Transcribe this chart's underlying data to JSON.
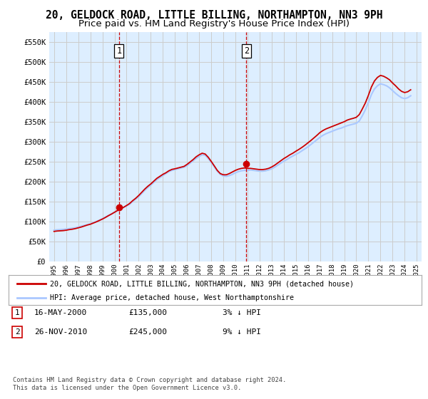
{
  "title": "20, GELDOCK ROAD, LITTLE BILLING, NORTHAMPTON, NN3 9PH",
  "subtitle": "Price paid vs. HM Land Registry's House Price Index (HPI)",
  "title_fontsize": 10.5,
  "subtitle_fontsize": 9.5,
  "ylim": [
    0,
    575000
  ],
  "yticks": [
    0,
    50000,
    100000,
    150000,
    200000,
    250000,
    300000,
    350000,
    400000,
    450000,
    500000,
    550000
  ],
  "ytick_labels": [
    "£0",
    "£50K",
    "£100K",
    "£150K",
    "£200K",
    "£250K",
    "£300K",
    "£350K",
    "£400K",
    "£450K",
    "£500K",
    "£550K"
  ],
  "xtick_years": [
    "1995",
    "1996",
    "1997",
    "1998",
    "1999",
    "2000",
    "2001",
    "2002",
    "2003",
    "2004",
    "2005",
    "2006",
    "2007",
    "2008",
    "2009",
    "2010",
    "2011",
    "2012",
    "2013",
    "2014",
    "2015",
    "2016",
    "2017",
    "2018",
    "2019",
    "2020",
    "2021",
    "2022",
    "2023",
    "2024",
    "2025"
  ],
  "hpi_color": "#aac8ff",
  "price_color": "#cc0000",
  "grid_color": "#cccccc",
  "bg_color": "#ddeeff",
  "sale1_year": 2000.38,
  "sale1_price": 135000,
  "sale1_label": "1",
  "sale2_year": 2010.9,
  "sale2_price": 245000,
  "sale2_label": "2",
  "legend_line1": "20, GELDOCK ROAD, LITTLE BILLING, NORTHAMPTON, NN3 9PH (detached house)",
  "legend_line2": "HPI: Average price, detached house, West Northamptonshire",
  "note1_label": "1",
  "note1_date": "16-MAY-2000",
  "note1_price": "£135,000",
  "note1_hpi": "3% ↓ HPI",
  "note2_label": "2",
  "note2_date": "26-NOV-2010",
  "note2_price": "£245,000",
  "note2_hpi": "9% ↓ HPI",
  "footnote": "Contains HM Land Registry data © Crown copyright and database right 2024.\nThis data is licensed under the Open Government Licence v3.0.",
  "hpi_data_x": [
    1995,
    1995.25,
    1995.5,
    1995.75,
    1996,
    1996.25,
    1996.5,
    1996.75,
    1997,
    1997.25,
    1997.5,
    1997.75,
    1998,
    1998.25,
    1998.5,
    1998.75,
    1999,
    1999.25,
    1999.5,
    1999.75,
    2000,
    2000.25,
    2000.5,
    2000.75,
    2001,
    2001.25,
    2001.5,
    2001.75,
    2002,
    2002.25,
    2002.5,
    2002.75,
    2003,
    2003.25,
    2003.5,
    2003.75,
    2004,
    2004.25,
    2004.5,
    2004.75,
    2005,
    2005.25,
    2005.5,
    2005.75,
    2006,
    2006.25,
    2006.5,
    2006.75,
    2007,
    2007.25,
    2007.5,
    2007.75,
    2008,
    2008.25,
    2008.5,
    2008.75,
    2009,
    2009.25,
    2009.5,
    2009.75,
    2010,
    2010.25,
    2010.5,
    2010.75,
    2011,
    2011.25,
    2011.5,
    2011.75,
    2012,
    2012.25,
    2012.5,
    2012.75,
    2013,
    2013.25,
    2013.5,
    2013.75,
    2014,
    2014.25,
    2014.5,
    2014.75,
    2015,
    2015.25,
    2015.5,
    2015.75,
    2016,
    2016.25,
    2016.5,
    2016.75,
    2017,
    2017.25,
    2017.5,
    2017.75,
    2018,
    2018.25,
    2018.5,
    2018.75,
    2019,
    2019.25,
    2019.5,
    2019.75,
    2020,
    2020.25,
    2020.5,
    2020.75,
    2021,
    2021.25,
    2021.5,
    2021.75,
    2022,
    2022.25,
    2022.5,
    2022.75,
    2023,
    2023.25,
    2023.5,
    2023.75,
    2024,
    2024.25,
    2024.5
  ],
  "hpi_data_y": [
    78000,
    79000,
    79500,
    80000,
    81000,
    82000,
    83000,
    84000,
    86000,
    88000,
    90000,
    92000,
    94000,
    97000,
    100000,
    103000,
    107000,
    111000,
    115000,
    119000,
    123000,
    127000,
    131000,
    135000,
    139000,
    143000,
    150000,
    156000,
    162000,
    170000,
    178000,
    185000,
    191000,
    198000,
    205000,
    210000,
    215000,
    220000,
    225000,
    228000,
    230000,
    232000,
    234000,
    236000,
    240000,
    246000,
    252000,
    258000,
    263000,
    267000,
    266000,
    258000,
    248000,
    237000,
    226000,
    218000,
    214000,
    213000,
    215000,
    218000,
    222000,
    225000,
    227000,
    228000,
    228000,
    229000,
    228000,
    227000,
    226000,
    226000,
    227000,
    229000,
    232000,
    236000,
    241000,
    246000,
    251000,
    255000,
    260000,
    264000,
    268000,
    272000,
    277000,
    282000,
    287000,
    293000,
    299000,
    305000,
    311000,
    316000,
    320000,
    323000,
    326000,
    329000,
    332000,
    334000,
    337000,
    340000,
    342000,
    344000,
    346000,
    352000,
    365000,
    380000,
    398000,
    418000,
    432000,
    440000,
    445000,
    443000,
    440000,
    435000,
    428000,
    421000,
    415000,
    410000,
    408000,
    410000,
    415000
  ],
  "red_data_x": [
    1995,
    1995.25,
    1995.5,
    1995.75,
    1996,
    1996.25,
    1996.5,
    1996.75,
    1997,
    1997.25,
    1997.5,
    1997.75,
    1998,
    1998.25,
    1998.5,
    1998.75,
    1999,
    1999.25,
    1999.5,
    1999.75,
    2000,
    2000.25,
    2000.5,
    2000.75,
    2001,
    2001.25,
    2001.5,
    2001.75,
    2002,
    2002.25,
    2002.5,
    2002.75,
    2003,
    2003.25,
    2003.5,
    2003.75,
    2004,
    2004.25,
    2004.5,
    2004.75,
    2005,
    2005.25,
    2005.5,
    2005.75,
    2006,
    2006.25,
    2006.5,
    2006.75,
    2007,
    2007.25,
    2007.5,
    2007.75,
    2008,
    2008.25,
    2008.5,
    2008.75,
    2009,
    2009.25,
    2009.5,
    2009.75,
    2010,
    2010.25,
    2010.5,
    2010.75,
    2011,
    2011.25,
    2011.5,
    2011.75,
    2012,
    2012.25,
    2012.5,
    2012.75,
    2013,
    2013.25,
    2013.5,
    2013.75,
    2014,
    2014.25,
    2014.5,
    2014.75,
    2015,
    2015.25,
    2015.5,
    2015.75,
    2016,
    2016.25,
    2016.5,
    2016.75,
    2017,
    2017.25,
    2017.5,
    2017.75,
    2018,
    2018.25,
    2018.5,
    2018.75,
    2019,
    2019.25,
    2019.5,
    2019.75,
    2020,
    2020.25,
    2020.5,
    2020.75,
    2021,
    2021.25,
    2021.5,
    2021.75,
    2022,
    2022.25,
    2022.5,
    2022.75,
    2023,
    2023.25,
    2023.5,
    2023.75,
    2024,
    2024.25,
    2024.5
  ],
  "red_data_y": [
    75000,
    76000,
    76500,
    77000,
    78000,
    79500,
    80500,
    82000,
    84000,
    86000,
    88500,
    91000,
    93000,
    96000,
    99000,
    102500,
    106000,
    110000,
    114500,
    118500,
    123000,
    127500,
    131500,
    135500,
    140000,
    145000,
    152000,
    158000,
    165000,
    173000,
    181000,
    188000,
    194000,
    201000,
    208000,
    213000,
    218000,
    222000,
    227000,
    230500,
    232000,
    234000,
    236000,
    238000,
    243000,
    249000,
    255000,
    262000,
    267000,
    271000,
    269000,
    261000,
    250500,
    239500,
    228000,
    220000,
    217000,
    217000,
    220000,
    224000,
    228000,
    231000,
    233000,
    234000,
    233000,
    233000,
    232000,
    231000,
    230000,
    230000,
    231000,
    233000,
    236500,
    241000,
    246500,
    252000,
    257500,
    262000,
    267000,
    271000,
    276000,
    280500,
    285500,
    291000,
    297000,
    303000,
    309500,
    316000,
    323000,
    328000,
    332000,
    335000,
    338000,
    341000,
    344000,
    347000,
    350000,
    354000,
    356500,
    358500,
    361000,
    368000,
    382000,
    397000,
    416000,
    437000,
    452000,
    461000,
    466000,
    464000,
    460000,
    455000,
    447000,
    440000,
    432000,
    426000,
    423000,
    425000,
    430000
  ]
}
